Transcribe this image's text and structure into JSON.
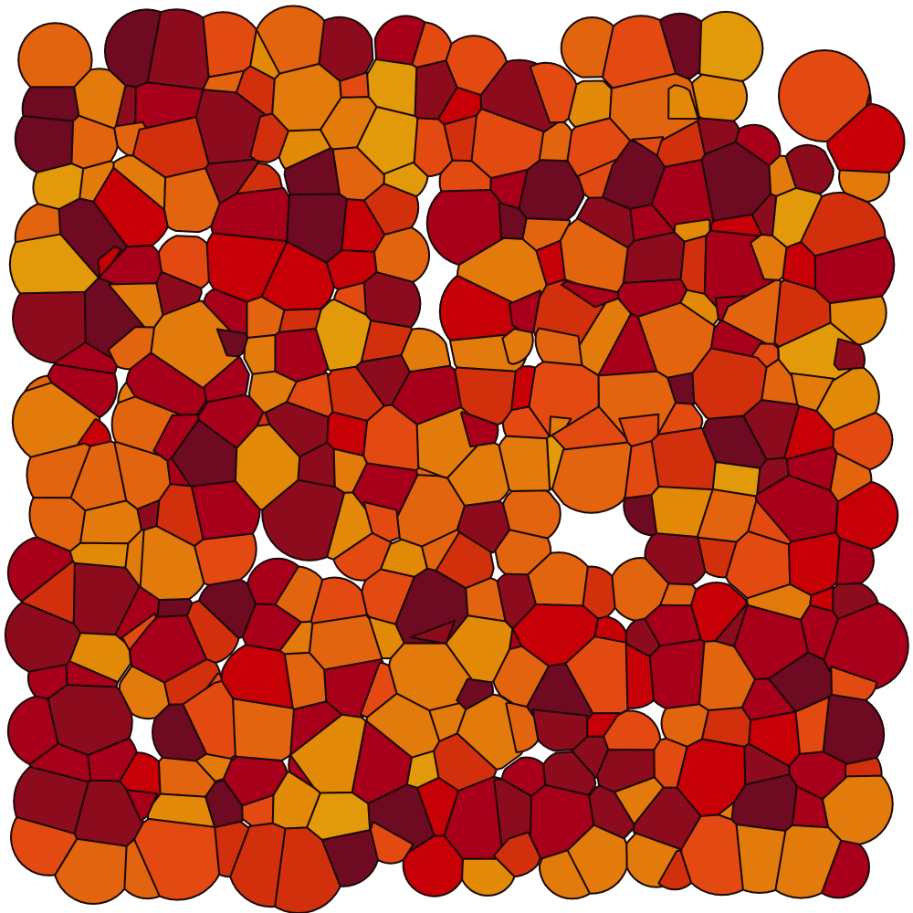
{
  "background": "#ffffff",
  "palette": [
    "#6e0a22",
    "#8c0c1e",
    "#a8001a",
    "#c70008",
    "#d2300c",
    "#e34a12",
    "#e2640e",
    "#e27a0c",
    "#e28a08",
    "#e39a0a"
  ],
  "seed": 73,
  "fill_weights": [
    8,
    12,
    14,
    10,
    9,
    12,
    13,
    12,
    6,
    4
  ]
}
